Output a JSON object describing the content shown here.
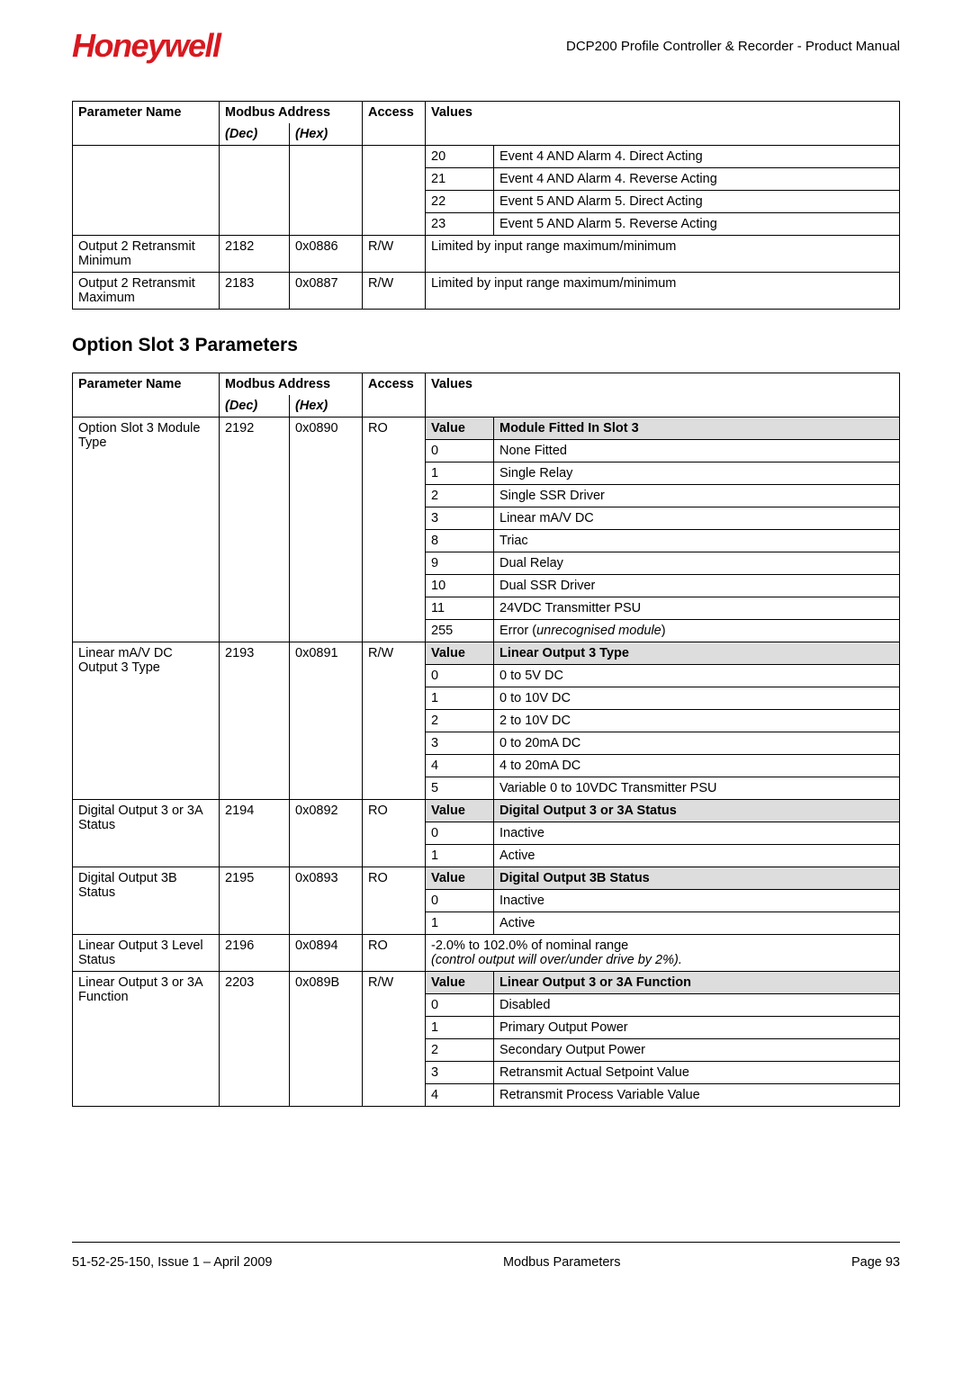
{
  "header": {
    "logo": "Honeywell",
    "title": "DCP200 Profile Controller & Recorder - Product Manual"
  },
  "table1": {
    "headers": {
      "param": "Parameter Name",
      "modbus": "Modbus Address",
      "dec": "(Dec)",
      "hex": "(Hex)",
      "access": "Access",
      "values": "Values"
    },
    "event_rows": [
      {
        "v": "20",
        "d": "Event 4 AND Alarm 4. Direct Acting"
      },
      {
        "v": "21",
        "d": "Event 4 AND Alarm 4. Reverse Acting"
      },
      {
        "v": "22",
        "d": "Event 5 AND Alarm 5. Direct Acting"
      },
      {
        "v": "23",
        "d": "Event 5 AND Alarm 5. Reverse Acting"
      }
    ],
    "rows": [
      {
        "param": "Output 2 Retransmit Minimum",
        "dec": "2182",
        "hex": "0x0886",
        "access": "R/W",
        "values": "Limited by input range maximum/minimum"
      },
      {
        "param": "Output 2 Retransmit Maximum",
        "dec": "2183",
        "hex": "0x0887",
        "access": "R/W",
        "values": "Limited by input range maximum/minimum"
      }
    ]
  },
  "section_heading": "Option Slot 3 Parameters",
  "table2": {
    "headers": {
      "param": "Parameter Name",
      "modbus": "Modbus Address",
      "dec": "(Dec)",
      "hex": "(Hex)",
      "access": "Access",
      "values": "Values"
    },
    "params": {
      "moduleType": {
        "param": "Option Slot 3 Module Type",
        "dec": "2192",
        "hex": "0x0890",
        "access": "RO",
        "vh_v": "Value",
        "vh_d": "Module Fitted In Slot 3",
        "vals": [
          {
            "v": "0",
            "d": "None Fitted"
          },
          {
            "v": "1",
            "d": "Single Relay"
          },
          {
            "v": "2",
            "d": "Single SSR Driver"
          },
          {
            "v": "3",
            "d": "Linear mA/V DC"
          },
          {
            "v": "8",
            "d": "Triac"
          },
          {
            "v": "9",
            "d": "Dual Relay"
          },
          {
            "v": "10",
            "d": "Dual SSR Driver"
          },
          {
            "v": "11",
            "d": "24VDC Transmitter PSU"
          }
        ],
        "err_v": "255",
        "err_d1": "Error (",
        "err_d2": "unrecognised module",
        "err_d3": ")"
      },
      "output3Type": {
        "param": "Linear mA/V DC Output 3 Type",
        "dec": "2193",
        "hex": "0x0891",
        "access": "R/W",
        "vh_v": "Value",
        "vh_d": "Linear Output 3 Type",
        "vals": [
          {
            "v": "0",
            "d": "0 to 5V DC"
          },
          {
            "v": "1",
            "d": "0 to 10V DC"
          },
          {
            "v": "2",
            "d": "2 to 10V DC"
          },
          {
            "v": "3",
            "d": "0 to 20mA DC"
          },
          {
            "v": "4",
            "d": "4 to 20mA DC"
          },
          {
            "v": "5",
            "d": "Variable 0 to 10VDC Transmitter PSU"
          }
        ]
      },
      "do3aStatus": {
        "param": "Digital Output 3 or 3A Status",
        "dec": "2194",
        "hex": "0x0892",
        "access": "RO",
        "vh_v": "Value",
        "vh_d": "Digital Output 3 or 3A Status",
        "vals": [
          {
            "v": "0",
            "d": "Inactive"
          },
          {
            "v": "1",
            "d": "Active"
          }
        ]
      },
      "do3bStatus": {
        "param": "Digital Output 3B Status",
        "dec": "2195",
        "hex": "0x0893",
        "access": "RO",
        "vh_v": "Value",
        "vh_d": "Digital Output 3B Status",
        "vals": [
          {
            "v": "0",
            "d": "Inactive"
          },
          {
            "v": "1",
            "d": "Active"
          }
        ]
      },
      "levelStatus": {
        "param": "Linear Output 3 Level Status",
        "dec": "2196",
        "hex": "0x0894",
        "access": "RO",
        "text1": "-2.0% to 102.0% of nominal range",
        "text2": "(control output will over/under drive by 2%)."
      },
      "lo3aFunction": {
        "param": "Linear Output 3 or 3A Function",
        "dec": "2203",
        "hex": "0x089B",
        "access": "R/W",
        "vh_v": "Value",
        "vh_d": "Linear Output 3 or 3A Function",
        "vals": [
          {
            "v": "0",
            "d": "Disabled"
          },
          {
            "v": "1",
            "d": "Primary Output Power"
          },
          {
            "v": "2",
            "d": "Secondary Output Power"
          },
          {
            "v": "3",
            "d": "Retransmit Actual Setpoint Value"
          },
          {
            "v": "4",
            "d": "Retransmit Process Variable Value"
          }
        ]
      }
    }
  },
  "footer": {
    "left": "51-52-25-150, Issue 1 – April 2009",
    "center": "Modbus Parameters",
    "right": "Page 93"
  }
}
